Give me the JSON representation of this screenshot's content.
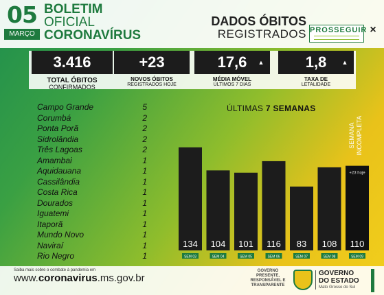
{
  "header": {
    "day": "05",
    "month": "MARÇO",
    "title_lines": [
      "BOLETIM",
      "OFICIAL",
      "CORONAVÍRUS"
    ],
    "right_line1": "DADOS ÓBITOS",
    "right_line2": "REGISTRADOS",
    "program_name": "PROSSEGUIR",
    "close_symbol": "×"
  },
  "stats": {
    "total": {
      "value": "3.416",
      "label1": "TOTAL ÓBITOS",
      "label2": "CONFIRMADOS"
    },
    "novos": {
      "value": "+23",
      "label1": "NOVOS ÓBITOS",
      "label2": "REGISTRADOS HOJE"
    },
    "media": {
      "value": "17,6",
      "label1": "MÉDIA MÓVEL",
      "label2": "ÚLTIMOS 7 DIAS",
      "trend_icon": "up-arrow-icon"
    },
    "taxa": {
      "value": "1,8",
      "label1": "TAXA DE",
      "label2": "LETALIDADE",
      "trend_icon": "up-arrow-icon"
    }
  },
  "cities": [
    {
      "name": "Campo Grande",
      "count": "5"
    },
    {
      "name": "Corumbá",
      "count": "2"
    },
    {
      "name": "Ponta Porã",
      "count": "2"
    },
    {
      "name": "Sidrolândia",
      "count": "2"
    },
    {
      "name": "Três Lagoas",
      "count": "2"
    },
    {
      "name": "Amambai",
      "count": "1"
    },
    {
      "name": "Aquidauana",
      "count": "1"
    },
    {
      "name": "Cassilândia",
      "count": "1"
    },
    {
      "name": "Costa Rica",
      "count": "1"
    },
    {
      "name": "Dourados",
      "count": "1"
    },
    {
      "name": "Iguatemi",
      "count": "1"
    },
    {
      "name": "Itaporã",
      "count": "1"
    },
    {
      "name": "Mundo Novo",
      "count": "1"
    },
    {
      "name": "Naviraí",
      "count": "1"
    },
    {
      "name": "Rio Negro",
      "count": "1"
    }
  ],
  "chart_data": {
    "type": "bar",
    "title_prefix": "ÚLTIMAS",
    "title_bold": "7 SEMANAS",
    "categories": [
      "SEM 03",
      "SEM 04",
      "SEM 05",
      "SEM 06",
      "SEM 07",
      "SEM 08",
      "SEM 09"
    ],
    "values": [
      134,
      104,
      101,
      116,
      83,
      108,
      110
    ],
    "incomplete_label_1": "SEMANA",
    "incomplete_label_2": "INCOMPLETA",
    "today_note": "+23 hoje",
    "ylim": [
      0,
      140
    ]
  },
  "footer": {
    "small_text": "Saiba mais sobre o combate à pandemia em",
    "url_prefix": "www.",
    "url_bold": "coronavirus",
    "url_suffix": ".ms.gov.br",
    "gov_tag": [
      "GOVERNO",
      "PRESENTE,",
      "RESPONSÁVEL E",
      "TRANSPARENTE"
    ],
    "gov_name": [
      "GOVERNO",
      "DO ESTADO",
      "Mato Grosso do Sul"
    ]
  },
  "colors": {
    "green": "#1e7a3e",
    "dark": "#1c1c1c",
    "yellow": "#e9c21a"
  }
}
